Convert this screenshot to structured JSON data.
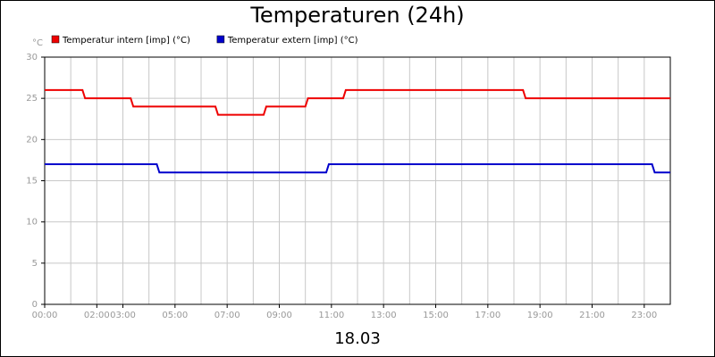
{
  "chart_data": {
    "type": "line",
    "title": "Temperaturen (24h)",
    "y_label": "°C",
    "x_label": "18.03",
    "series": [
      {
        "name": "Temperatur intern [imp] (°C)",
        "color": "#ee0000",
        "x": [
          0,
          1.45,
          1.55,
          3.3,
          3.4,
          6.55,
          6.65,
          8.4,
          8.5,
          10.0,
          10.1,
          11.45,
          11.55,
          18.35,
          18.45,
          24
        ],
        "values": [
          26,
          26,
          25,
          25,
          24,
          24,
          23,
          23,
          24,
          24,
          25,
          25,
          26,
          26,
          25,
          25
        ]
      },
      {
        "name": "Temperatur extern [imp] (°C)",
        "color": "#0000cc",
        "x": [
          0,
          4.3,
          4.4,
          10.8,
          10.9,
          23.3,
          23.4,
          24
        ],
        "values": [
          17,
          17,
          16,
          16,
          17,
          17,
          16,
          16
        ]
      }
    ],
    "xlim": [
      0,
      24
    ],
    "ylim": [
      0,
      30
    ],
    "xticks": [
      {
        "value": 0,
        "label": "00:00"
      },
      {
        "value": 2,
        "label": "02:00"
      },
      {
        "value": 3,
        "label": "03:00"
      },
      {
        "value": 5,
        "label": "05:00"
      },
      {
        "value": 7,
        "label": "07:00"
      },
      {
        "value": 9,
        "label": "09:00"
      },
      {
        "value": 11,
        "label": "11:00"
      },
      {
        "value": 13,
        "label": "13:00"
      },
      {
        "value": 15,
        "label": "15:00"
      },
      {
        "value": 17,
        "label": "17:00"
      },
      {
        "value": 19,
        "label": "19:00"
      },
      {
        "value": 21,
        "label": "21:00"
      },
      {
        "value": 23,
        "label": "23:00"
      }
    ],
    "xminorticks": [
      1,
      4,
      6,
      8,
      10,
      12,
      14,
      16,
      18,
      20,
      22,
      24
    ],
    "yticks": [
      0,
      5,
      10,
      15,
      20,
      25,
      30
    ],
    "grid": true,
    "legend": "top-left"
  }
}
